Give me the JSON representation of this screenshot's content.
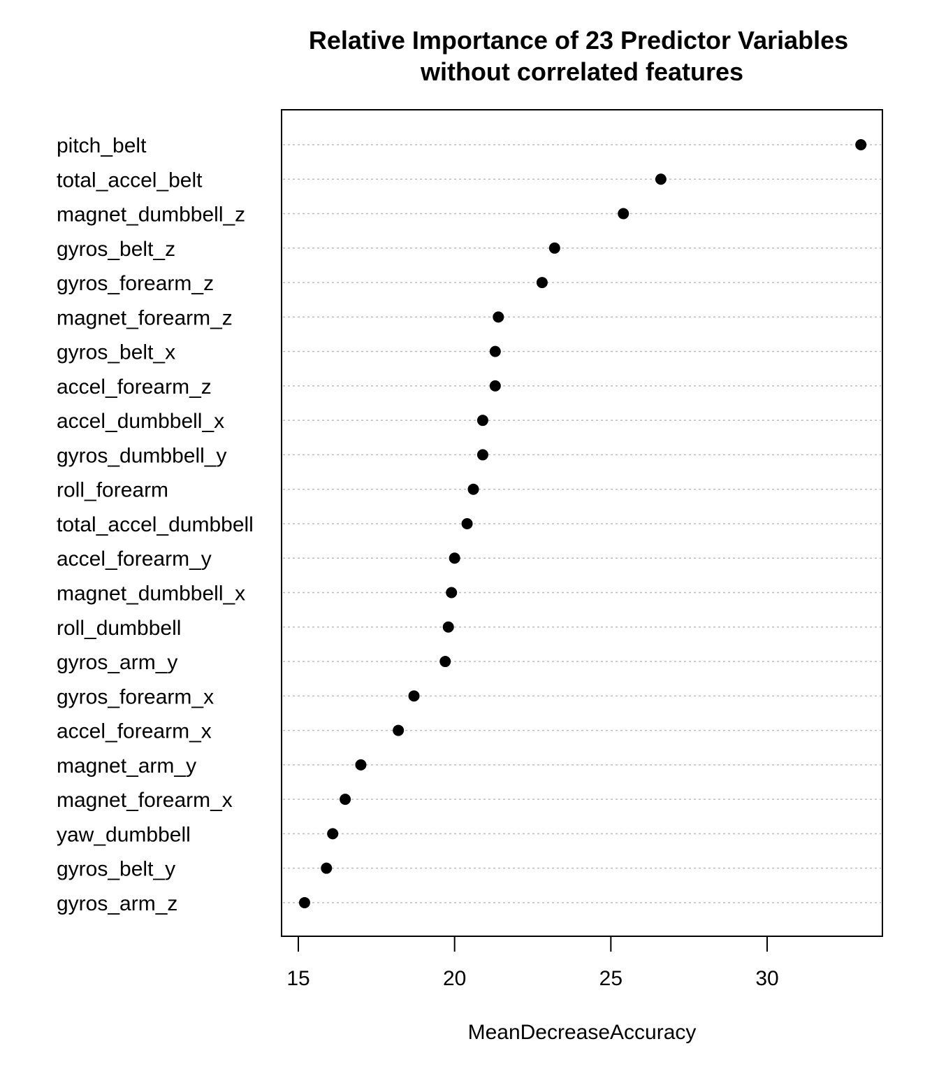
{
  "chart_data": {
    "type": "scatter",
    "subtype": "dotchart",
    "title": "Relative Importance of 23 Predictor Variables",
    "subtitle": "without correlated features",
    "xlabel": "MeanDecreaseAccuracy",
    "ylabel": "",
    "xlim": [
      14.5,
      33.7
    ],
    "xticks": [
      15,
      20,
      25,
      30
    ],
    "xtick_labels": [
      "15",
      "20",
      "25",
      "30"
    ],
    "grid": "dotted horizontal guide line per category",
    "legend": "none",
    "marker_color": "#000000",
    "categories": [
      "pitch_belt",
      "total_accel_belt",
      "magnet_dumbbell_z",
      "gyros_belt_z",
      "gyros_forearm_z",
      "magnet_forearm_z",
      "gyros_belt_x",
      "accel_forearm_z",
      "accel_dumbbell_x",
      "gyros_dumbbell_y",
      "roll_forearm",
      "total_accel_dumbbell",
      "accel_forearm_y",
      "magnet_dumbbell_x",
      "roll_dumbbell",
      "gyros_arm_y",
      "gyros_forearm_x",
      "accel_forearm_x",
      "magnet_arm_y",
      "magnet_forearm_x",
      "yaw_dumbbell",
      "gyros_belt_y",
      "gyros_arm_z"
    ],
    "values": [
      33.0,
      26.6,
      25.4,
      23.2,
      22.8,
      21.4,
      21.3,
      21.3,
      20.9,
      20.9,
      20.6,
      20.4,
      20.0,
      19.9,
      19.8,
      19.7,
      18.7,
      18.2,
      17.0,
      16.5,
      16.1,
      15.9,
      15.2
    ]
  }
}
